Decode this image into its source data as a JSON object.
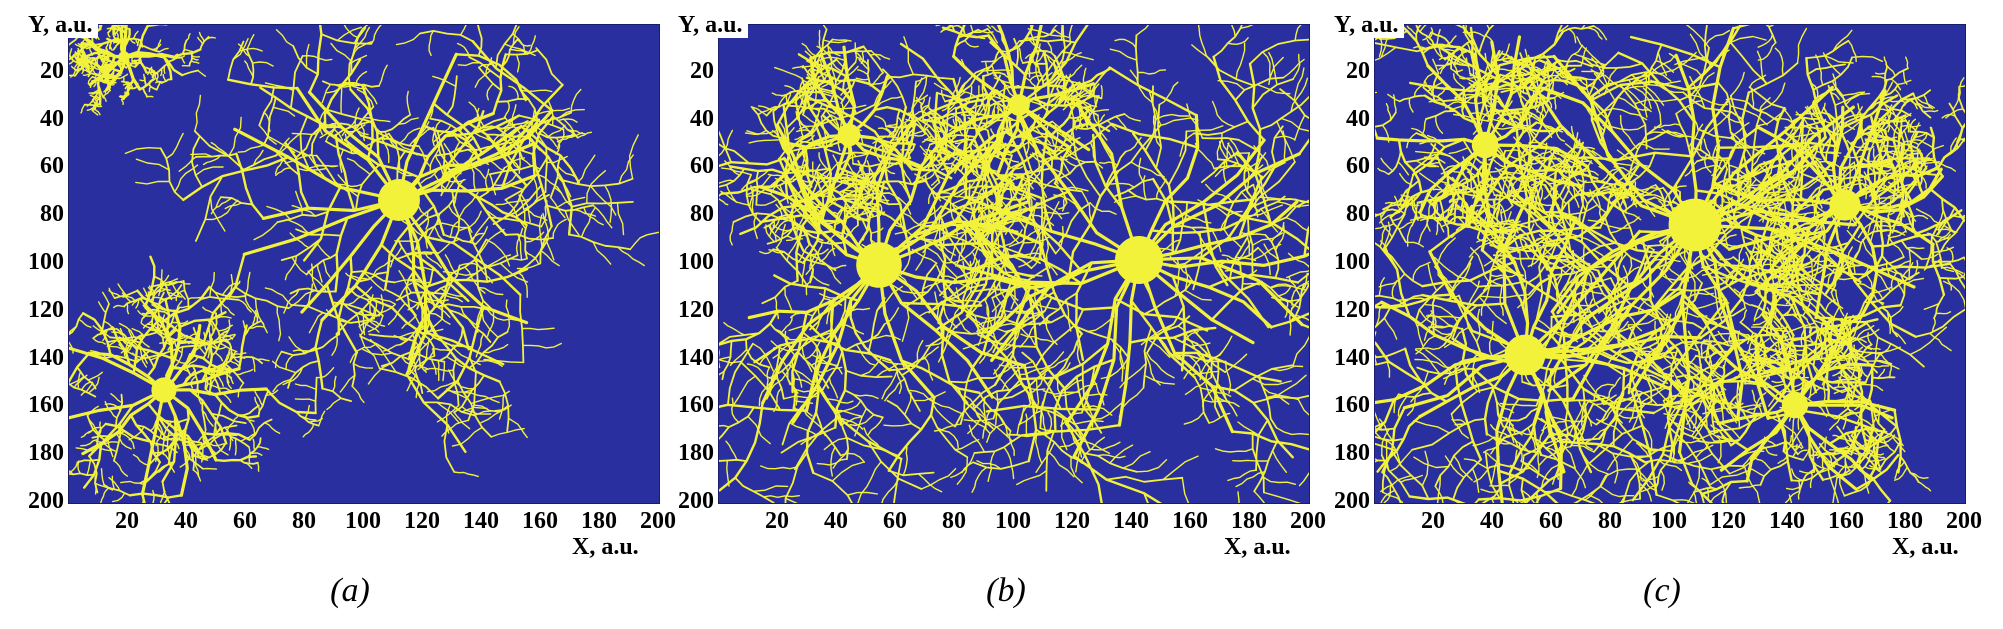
{
  "colors": {
    "background": "#2a2fa0",
    "cluster": "#f2f23a",
    "text": "#000000"
  },
  "axes": {
    "y_label": "Y, a.u.",
    "x_label": "X, a.u.",
    "y_ticks": [
      "20",
      "40",
      "60",
      "80",
      "100",
      "120",
      "140",
      "160",
      "180",
      "200"
    ],
    "x_ticks": [
      "20",
      "40",
      "60",
      "80",
      "100",
      "120",
      "140",
      "160",
      "180",
      "200"
    ],
    "x_range": [
      0,
      200
    ],
    "y_range": [
      0,
      200
    ],
    "y_inverted": true
  },
  "panels": [
    {
      "caption": "(a)"
    },
    {
      "caption": "(b)"
    },
    {
      "caption": "(c)"
    }
  ]
}
